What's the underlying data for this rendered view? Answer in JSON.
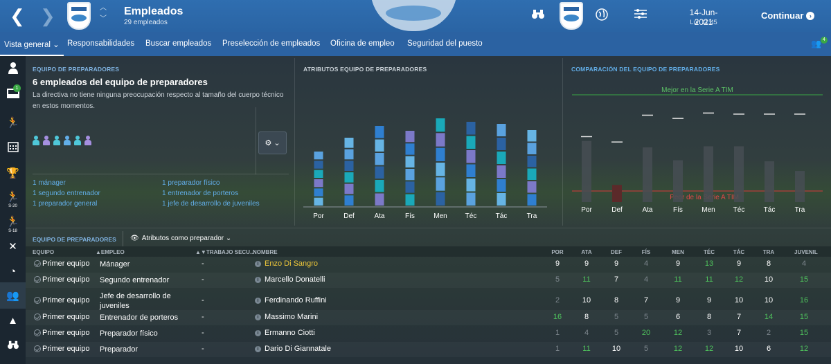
{
  "header": {
    "title": "Empleados",
    "subtitle": "29 empleados",
    "date": "14-Jun-2021",
    "time": "Lun 11:45",
    "continue_label": "Continuar",
    "back_glyph": "❮",
    "forward_glyph": "❯",
    "updown_glyph": "︿\n﹀",
    "icons": [
      "binoculars-icon",
      "club-crest",
      "globe-icon",
      "settings-sliders-icon"
    ]
  },
  "tabs": [
    {
      "label": "Vista general ⌄",
      "active": true
    },
    {
      "label": "Responsabilidades"
    },
    {
      "label": "Buscar empleados"
    },
    {
      "label": "Preselección de empleados"
    },
    {
      "label": "Oficina de empleo"
    },
    {
      "label": "Seguridad del puesto"
    }
  ],
  "people_badge": "4",
  "sidebar": {
    "items": [
      {
        "icon": "person-icon"
      },
      {
        "icon": "inbox-icon",
        "badge": "1"
      },
      {
        "icon": "running-player-icon"
      },
      {
        "icon": "calendar-icon"
      },
      {
        "icon": "trophy-icon"
      },
      {
        "icon": "u20-squad-icon",
        "label": "S-20"
      },
      {
        "icon": "u18-squad-icon",
        "label": "S-18"
      },
      {
        "icon": "tactics-icon"
      },
      {
        "icon": "training-icon"
      },
      {
        "icon": "staff-icon"
      },
      {
        "icon": "cone-icon"
      },
      {
        "icon": "scouting-icon"
      }
    ]
  },
  "coaching_panel": {
    "title": "EQUIPO DE PREPARADORES",
    "headline": "6 empleados del equipo de preparadores",
    "description": "La directiva no tiene ninguna preocupación respecto al tamaño del cuerpo técnico en estos momentos.",
    "staff_icon_colors": [
      "#4fc7d9",
      "#a58fe0",
      "#4fc7d9",
      "#62aee8",
      "#4fc7d9",
      "#a58fe0"
    ],
    "roles": [
      "1 mánager",
      "1 segundo entrenador",
      "1 preparador general",
      "1 preparador físico",
      "1 entrenador de porteros",
      "1 jefe de desarrollo de juveniles"
    ]
  },
  "attributes_panel": {
    "title": "ATRIBUTOS EQUIPO DE PREPARADORES"
  },
  "comparison_panel": {
    "title": "COMPARACIÓN DEL EQUIPO DE PREPARADORES",
    "best_label": "Mejor en la Serie A TIM",
    "worst_label": "Peor de la Serie A TIM"
  },
  "chart_data": [
    {
      "type": "bar",
      "stacked": true,
      "categories": [
        "Por",
        "Def",
        "Ata",
        "Fís",
        "Men",
        "Téc",
        "Tác",
        "Tra"
      ],
      "values": [
        80,
        100,
        117,
        110,
        128,
        123,
        120,
        111
      ],
      "colors": [
        "#66b4e4",
        "#2f7fd0",
        "#7c79c8",
        "#1aa9b9",
        "#2b62a2",
        "#5aa2df"
      ]
    },
    {
      "type": "bar",
      "categories": [
        "Por",
        "Def",
        "Ata",
        "Fís",
        "Men",
        "Téc",
        "Tác",
        "Tra"
      ],
      "values": [
        0.57,
        0.16,
        0.51,
        0.39,
        0.52,
        0.52,
        0.38,
        0.29
      ],
      "markers": [
        0.61,
        0.56,
        0.81,
        0.78,
        0.83,
        0.82,
        0.82,
        0.82
      ],
      "below_worst": [
        false,
        true,
        false,
        false,
        false,
        false,
        false,
        false
      ]
    }
  ],
  "table": {
    "section_title": "EQUIPO DE PREPARADORES",
    "view_toggle": "Atributos como preparador  ⌄",
    "columns": {
      "team": "EQUIPO",
      "job": "▲EMPLEO",
      "secondary": "▲▼TRABAJO SECU...",
      "name": "NOMBRE",
      "attrs": [
        "POR",
        "ATA",
        "DEF",
        "FÍS",
        "MEN",
        "TÉC",
        "TÁC",
        "TRA",
        "JUVENIL"
      ]
    },
    "rows": [
      {
        "team": "Primer equipo",
        "job": [
          "Mánager"
        ],
        "secondary": "-",
        "name": "Enzo Di Sangro",
        "highlight": true,
        "attrs": [
          9,
          9,
          9,
          4,
          9,
          13,
          9,
          8,
          4
        ]
      },
      {
        "team": "Primer equipo",
        "job": [
          "Segundo entrenador"
        ],
        "secondary": "-",
        "name": "Marcello Donatelli",
        "attrs": [
          5,
          11,
          7,
          4,
          11,
          11,
          12,
          10,
          15
        ]
      },
      {
        "team": "Primer equipo",
        "job": [
          "Jefe de desarrollo de",
          "juveniles"
        ],
        "secondary": "-",
        "name": "Ferdinando Ruffini",
        "attrs": [
          2,
          10,
          8,
          7,
          9,
          9,
          10,
          10,
          16
        ]
      },
      {
        "team": "Primer equipo",
        "job": [
          "Entrenador de porteros"
        ],
        "secondary": "-",
        "name": "Massimo Marini",
        "attrs": [
          16,
          8,
          5,
          5,
          6,
          8,
          7,
          14,
          15
        ]
      },
      {
        "team": "Primer equipo",
        "job": [
          "Preparador físico"
        ],
        "secondary": "-",
        "name": "Ermanno Ciotti",
        "attrs": [
          1,
          4,
          5,
          20,
          12,
          3,
          7,
          2,
          15
        ]
      },
      {
        "team": "Primer equipo",
        "job": [
          "Preparador"
        ],
        "secondary": "-",
        "name": "Dario Di Giannatale",
        "attrs": [
          1,
          11,
          10,
          5,
          12,
          12,
          10,
          6,
          12
        ]
      }
    ]
  }
}
